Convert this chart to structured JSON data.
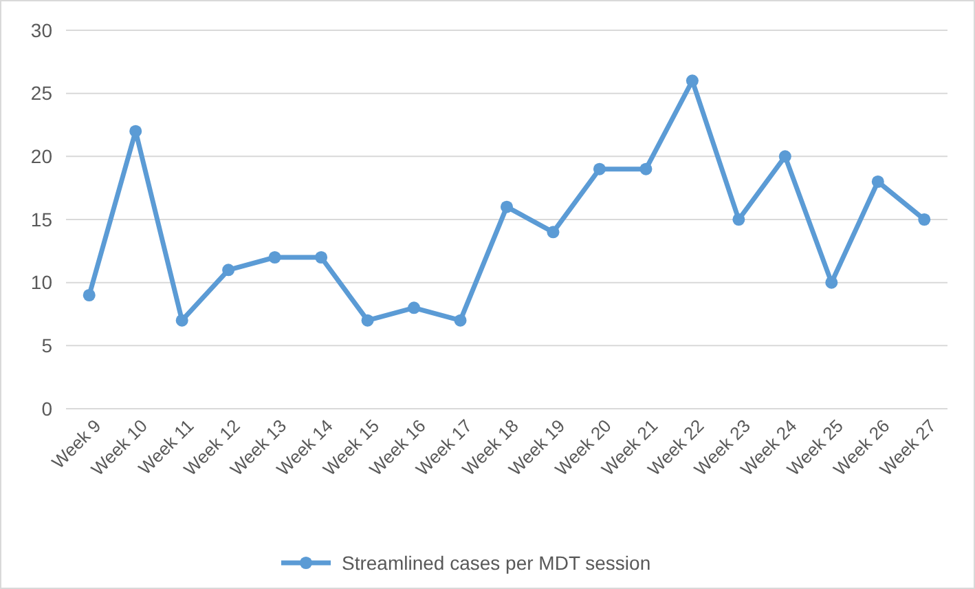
{
  "chart_data": {
    "type": "line",
    "categories": [
      "Week 9",
      "Week 10",
      "Week 11",
      "Week 12",
      "Week 13",
      "Week 14",
      "Week 15",
      "Week 16",
      "Week 17",
      "Week 18",
      "Week 19",
      "Week 20",
      "Week 21",
      "Week 22",
      "Week 23",
      "Week 24",
      "Week 25",
      "Week 26",
      "Week 27"
    ],
    "series": [
      {
        "name": "Streamlined cases per MDT session",
        "color": "#5b9bd5",
        "values": [
          9,
          22,
          7,
          11,
          12,
          12,
          7,
          8,
          7,
          16,
          14,
          19,
          19,
          26,
          15,
          20,
          10,
          18,
          15
        ]
      }
    ],
    "ylim": [
      0,
      30
    ],
    "yticks": [
      0,
      5,
      10,
      15,
      20,
      25,
      30
    ],
    "grid": "y",
    "legend": "bottom",
    "marker": "circle",
    "line_style": "solid"
  }
}
